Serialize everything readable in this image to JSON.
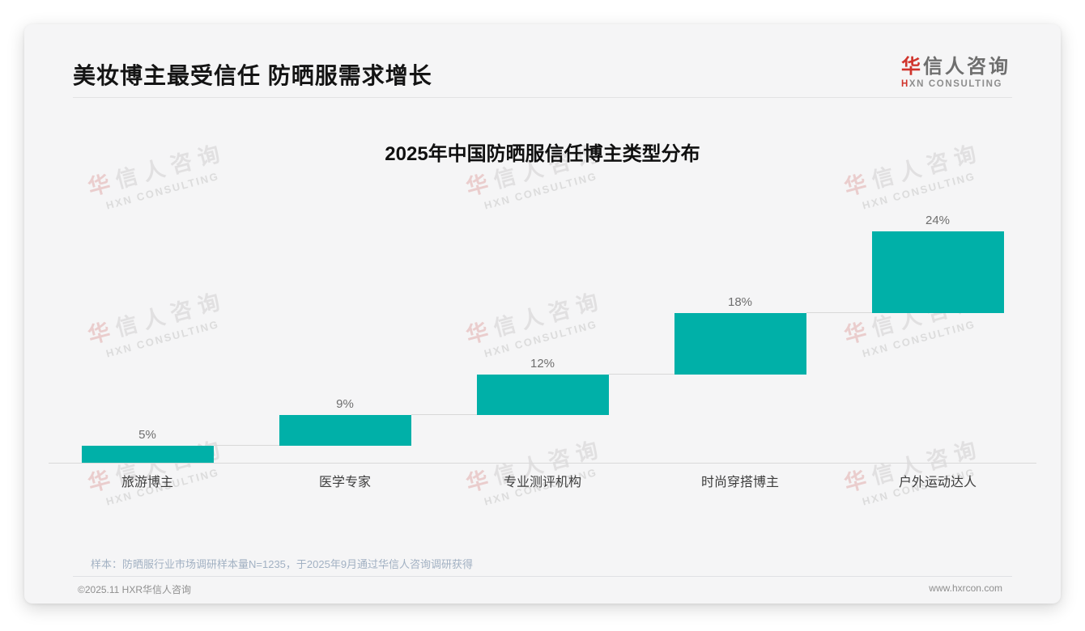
{
  "header": {
    "title": "美妆博主最受信任 防晒服需求增长",
    "logo": {
      "cn_accent": "华",
      "cn_rest": "信人咨询",
      "en_accent": "H",
      "en_rest": "XN CONSULTING"
    }
  },
  "watermark": {
    "cn_accent": "华",
    "cn_rest": "信人咨询",
    "en": "HXN CONSULTING"
  },
  "chart_data": {
    "type": "bar",
    "variant": "waterfall",
    "title": "2025年中国防晒服信任博主类型分布",
    "categories": [
      "旅游博主",
      "医学专家",
      "专业测评机构",
      "时尚穿搭博主",
      "户外运动达人"
    ],
    "values": [
      5,
      9,
      12,
      18,
      24
    ],
    "data_labels": [
      "5%",
      "9%",
      "12%",
      "18%",
      "24%"
    ],
    "cumulative": [
      5,
      14,
      26,
      44,
      68
    ],
    "unit": "%",
    "ylim": [
      0,
      68
    ],
    "grid": false,
    "legend": false,
    "value_axis": "hidden",
    "bar_color": "#00b0a8",
    "connector_color": "#d8d8d8",
    "axis_line_color": "#d9d9d9",
    "label_color": "#6e6e6e",
    "category_color": "#3d3d3d"
  },
  "footnote": {
    "sample_note": "样本：防晒服行业市场调研样本量N=1235，于2025年9月通过华信人咨询调研获得"
  },
  "footer": {
    "copyright": "©2025.11 HXR华信人咨询",
    "website": "www.hxrcon.com"
  },
  "colors": {
    "accent_red": "#d0342c",
    "teal": "#00b0a8",
    "card_bg": "#f5f5f6"
  }
}
